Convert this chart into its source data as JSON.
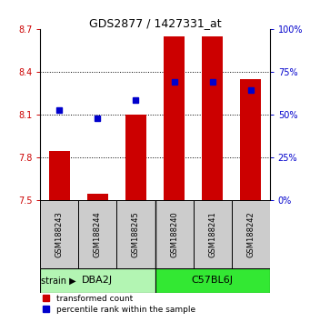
{
  "title": "GDS2877 / 1427331_at",
  "samples": [
    "GSM188243",
    "GSM188244",
    "GSM188245",
    "GSM188240",
    "GSM188241",
    "GSM188242"
  ],
  "red_values": [
    7.84,
    7.54,
    8.1,
    8.65,
    8.65,
    8.35
  ],
  "blue_values": [
    8.13,
    8.07,
    8.2,
    8.33,
    8.33,
    8.27
  ],
  "ylim_left": [
    7.5,
    8.7
  ],
  "ylim_right": [
    0,
    100
  ],
  "yticks_left": [
    7.5,
    7.8,
    8.1,
    8.4,
    8.7
  ],
  "yticks_right": [
    0,
    25,
    50,
    75,
    100
  ],
  "groups": [
    {
      "label": "DBA2J",
      "indices": [
        0,
        1,
        2
      ],
      "color": "#b3f5b3"
    },
    {
      "label": "C57BL6J",
      "indices": [
        3,
        4,
        5
      ],
      "color": "#33e833"
    }
  ],
  "red_color": "#cc0000",
  "blue_color": "#0000cc",
  "bar_width": 0.55,
  "sample_box_color": "#cccccc",
  "bg_color": "#ffffff",
  "title_fontsize": 9,
  "tick_fontsize": 7,
  "sample_fontsize": 6,
  "group_fontsize": 8,
  "legend_fontsize": 6.5
}
